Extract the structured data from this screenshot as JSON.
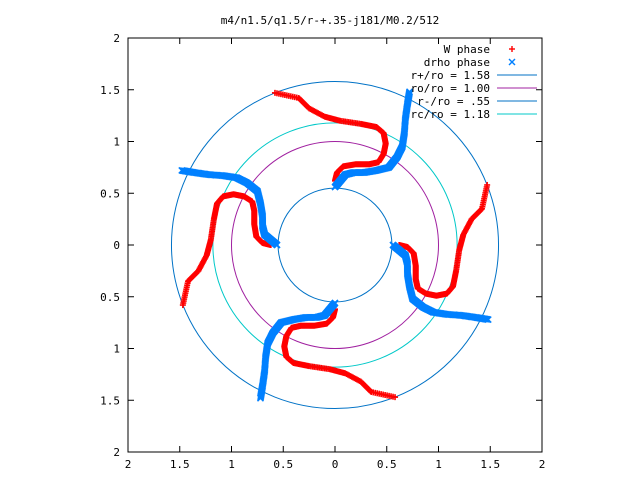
{
  "chart_data": {
    "type": "scatter",
    "title": "m4/n1.5/q1.5/r-+.35-j181/M0.2/512",
    "xlabel": "",
    "ylabel": "",
    "xlim": [
      -2,
      2
    ],
    "ylim": [
      -2,
      2
    ],
    "x_ticks": [
      -2,
      -1.5,
      -1,
      -0.5,
      0,
      0.5,
      1,
      1.5,
      2
    ],
    "y_ticks": [
      -2,
      -1.5,
      -1,
      -0.5,
      0,
      0.5,
      1,
      1.5,
      2
    ],
    "x_tick_labels": [
      "2",
      "1.5",
      "1",
      "0.5",
      "0",
      "0.5",
      "1",
      "1.5",
      "2"
    ],
    "y_tick_labels": [
      "2",
      "1.5",
      "1",
      "0.5",
      "0",
      "0.5",
      "1",
      "1.5",
      "2"
    ],
    "grid": false,
    "legend_position": "top-right",
    "legend": [
      {
        "label": "W phase",
        "marker": "+",
        "color": "#ff0000"
      },
      {
        "label": "drho phase",
        "marker": "x",
        "color": "#0080ff"
      },
      {
        "label": "r+/ro = 1.58",
        "line": true,
        "color": "#0072c6"
      },
      {
        "label": "ro/ro = 1.00",
        "line": true,
        "color": "#a020a0"
      },
      {
        "label": "r-/ro = .55",
        "line": true,
        "color": "#0072c6"
      },
      {
        "label": "rc/ro = 1.18",
        "line": true,
        "color": "#00c8c8"
      }
    ],
    "circles": [
      {
        "name": "r+/ro = 1.58",
        "r": 1.58,
        "color": "#0072c6"
      },
      {
        "name": "ro/ro = 1.00",
        "r": 1.0,
        "color": "#a020a0"
      },
      {
        "name": "r-/ro = .55",
        "r": 0.55,
        "color": "#0072c6"
      },
      {
        "name": "rc/ro = 1.18",
        "r": 1.18,
        "color": "#00c8c8"
      }
    ],
    "series": [
      {
        "name": "W phase",
        "color": "#ff0000",
        "marker": "+",
        "arms": 4,
        "points": [
          [
            0,
            0.62
          ],
          [
            0.02,
            0.7
          ],
          [
            0.08,
            0.76
          ],
          [
            0.2,
            0.78
          ],
          [
            0.33,
            0.78
          ],
          [
            0.42,
            0.8
          ],
          [
            0.47,
            0.88
          ],
          [
            0.49,
            0.98
          ],
          [
            0.47,
            1.08
          ],
          [
            0.4,
            1.14
          ],
          [
            0.25,
            1.17
          ],
          [
            0.05,
            1.2
          ],
          [
            -0.1,
            1.24
          ],
          [
            -0.25,
            1.32
          ],
          [
            -0.35,
            1.42
          ],
          [
            -0.58,
            1.47
          ]
        ]
      },
      {
        "name": "drho phase",
        "color": "#0080ff",
        "marker": "x",
        "arms": 4,
        "points": [
          [
            -0.72,
            -1.48
          ],
          [
            -0.7,
            -1.36
          ],
          [
            -0.68,
            -1.22
          ],
          [
            -0.67,
            -1.08
          ],
          [
            -0.65,
            -0.95
          ],
          [
            -0.6,
            -0.85
          ],
          [
            -0.52,
            -0.75
          ],
          [
            -0.4,
            -0.72
          ],
          [
            -0.28,
            -0.7
          ],
          [
            -0.18,
            -0.7
          ],
          [
            -0.1,
            -0.68
          ],
          [
            -0.05,
            -0.62
          ],
          [
            0,
            -0.56
          ]
        ]
      }
    ]
  }
}
